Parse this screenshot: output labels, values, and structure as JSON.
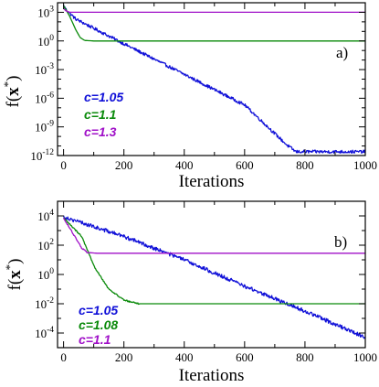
{
  "chart_data": [
    {
      "type": "line",
      "panel_label": "a)",
      "xlabel": "Iterations",
      "ylabel": "f(x*)",
      "ylabel_main": "f(",
      "ylabel_var": "x",
      "ylabel_sup": "*",
      "ylabel_close": ")",
      "xlim": [
        -20,
        1000
      ],
      "ylim_log10": [
        -12,
        4
      ],
      "y_scale": "log",
      "x_ticks": [
        0,
        200,
        400,
        600,
        800,
        1000
      ],
      "x_tick_labels": [
        "0",
        "200",
        "400",
        "600",
        "800",
        "1000"
      ],
      "y_ticks_log10": [
        -12,
        -9,
        -6,
        -3,
        0,
        3
      ],
      "y_tick_base": "10",
      "y_tick_exponents": [
        "-12",
        "-9",
        "-6",
        "-3",
        "0",
        "3"
      ],
      "series": [
        {
          "name": "c=1.05",
          "color": "#1010d8",
          "noisy": true,
          "noise_amp": 0.16,
          "points": [
            [
              0,
              3.7
            ],
            [
              8,
              3.3
            ],
            [
              40,
              2.3
            ],
            [
              200,
              -0.3
            ],
            [
              400,
              -3.5
            ],
            [
              600,
              -6.7
            ],
            [
              740,
              -10.9
            ],
            [
              770,
              -11.6
            ],
            [
              1000,
              -11.6
            ]
          ]
        },
        {
          "name": "c=1.1",
          "color": "#0a8a0a",
          "noisy": false,
          "points": [
            [
              0,
              3.7
            ],
            [
              20,
              2.6
            ],
            [
              40,
              1.2
            ],
            [
              55,
              0.35
            ],
            [
              70,
              0.05
            ],
            [
              100,
              0.0
            ],
            [
              1000,
              0.0
            ]
          ]
        },
        {
          "name": "c=1.3",
          "color": "#a010c8",
          "noisy": false,
          "points": [
            [
              0,
              3.4
            ],
            [
              8,
              3.15
            ],
            [
              20,
              3.0
            ],
            [
              1000,
              3.0
            ]
          ]
        }
      ],
      "legend": [
        {
          "text": "c=1.05",
          "color": "#1010d8"
        },
        {
          "text": "c=1.1",
          "color": "#0a8a0a"
        },
        {
          "text": "c=1.3",
          "color": "#a010c8"
        }
      ]
    },
    {
      "type": "line",
      "panel_label": "b)",
      "xlabel": "Iterations",
      "ylabel": "f(x*)",
      "ylabel_main": "f(",
      "ylabel_var": "x",
      "ylabel_sup": "*",
      "ylabel_close": ")",
      "xlim": [
        -20,
        1000
      ],
      "ylim_log10": [
        -5,
        5
      ],
      "y_scale": "log",
      "x_ticks": [
        0,
        200,
        400,
        600,
        800,
        1000
      ],
      "x_tick_labels": [
        "0",
        "200",
        "400",
        "600",
        "800",
        "1000"
      ],
      "y_ticks_log10": [
        -4,
        -2,
        0,
        2,
        4
      ],
      "y_tick_base": "10",
      "y_tick_exponents": [
        "-4",
        "-2",
        "0",
        "2",
        "4"
      ],
      "series": [
        {
          "name": "c=1.05",
          "color": "#1010d8",
          "noisy": true,
          "noise_amp": 0.13,
          "points": [
            [
              0,
              3.95
            ],
            [
              50,
              3.6
            ],
            [
              200,
              2.6
            ],
            [
              400,
              1.0
            ],
            [
              600,
              -0.8
            ],
            [
              800,
              -2.5
            ],
            [
              1000,
              -4.3
            ]
          ]
        },
        {
          "name": "c=1.08",
          "color": "#0a8a0a",
          "noisy": true,
          "noise_amp": 0.05,
          "noise_until": 250,
          "points": [
            [
              0,
              3.85
            ],
            [
              60,
              2.6
            ],
            [
              100,
              0.6
            ],
            [
              150,
              -1.0
            ],
            [
              200,
              -1.75
            ],
            [
              250,
              -2.0
            ],
            [
              1000,
              -2.0
            ]
          ]
        },
        {
          "name": "c=1.1",
          "color": "#a010c8",
          "noisy": true,
          "noise_amp": 0.04,
          "noise_until": 80,
          "points": [
            [
              0,
              3.85
            ],
            [
              40,
              2.5
            ],
            [
              60,
              1.8
            ],
            [
              80,
              1.5
            ],
            [
              110,
              1.45
            ],
            [
              1000,
              1.45
            ]
          ]
        }
      ],
      "legend": [
        {
          "text": "c=1.05",
          "color": "#1010d8"
        },
        {
          "text": "c=1.08",
          "color": "#0a8a0a"
        },
        {
          "text": "c=1.1",
          "color": "#a010c8"
        }
      ]
    }
  ]
}
